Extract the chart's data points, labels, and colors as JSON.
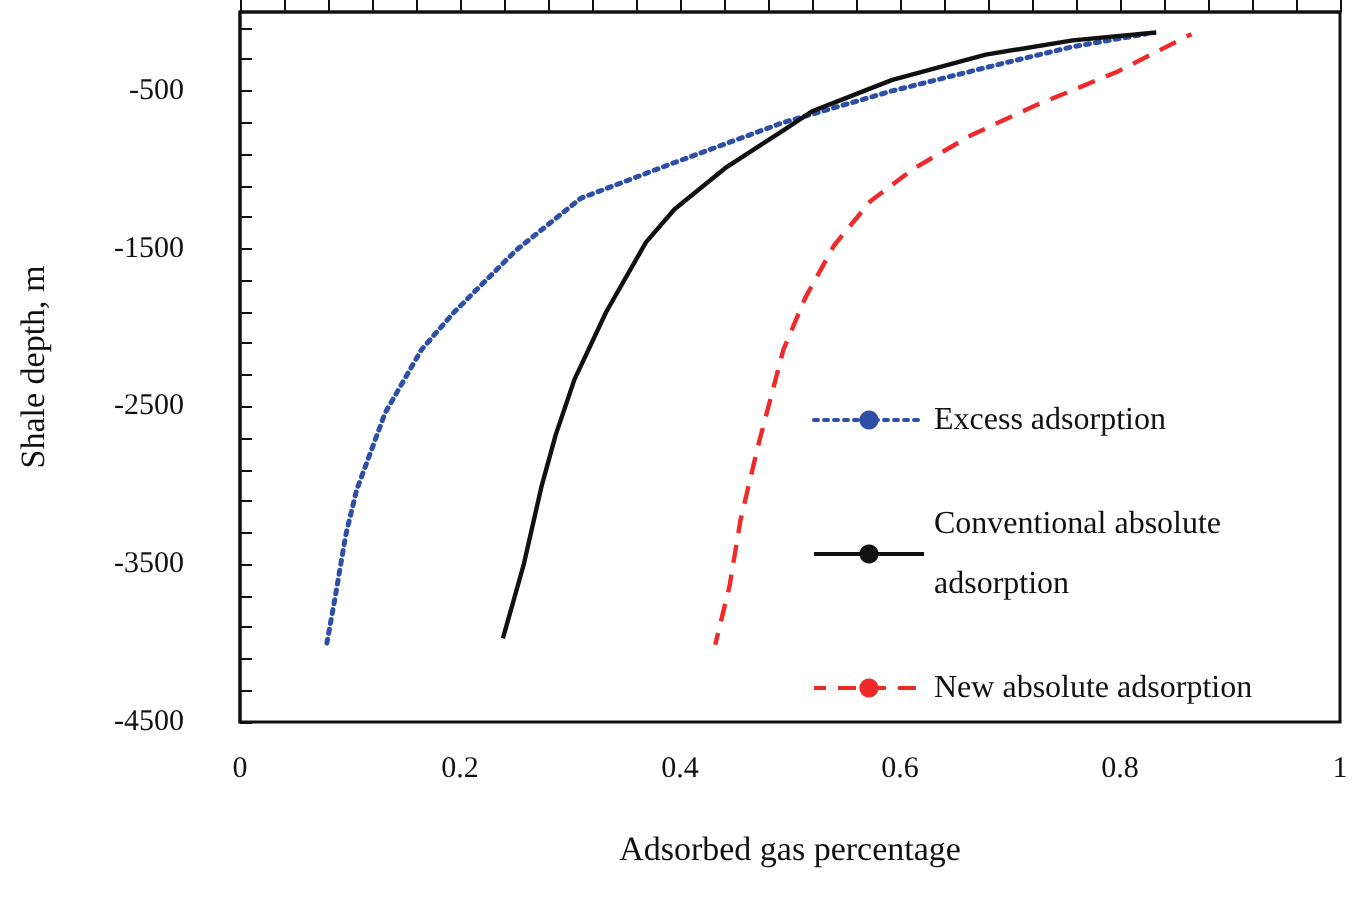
{
  "chart_data": {
    "type": "line",
    "xlabel": "Adsorbed gas percentage",
    "ylabel": "Shale depth, m",
    "xlim": [
      0,
      1
    ],
    "xticks": [
      0,
      {
        "value": 0.04,
        "label": null
      },
      {
        "value": 0.08,
        "label": null
      },
      {
        "value": 0.12,
        "label": null
      },
      {
        "value": 0.16,
        "label": null
      },
      0.2,
      {
        "value": 0.24,
        "label": null
      },
      {
        "value": 0.28,
        "label": null
      },
      {
        "value": 0.32,
        "label": null
      },
      {
        "value": 0.36,
        "label": null
      },
      0.4,
      {
        "value": 0.44,
        "label": null
      },
      {
        "value": 0.48,
        "label": null
      },
      {
        "value": 0.52,
        "label": null
      },
      {
        "value": 0.56,
        "label": null
      },
      0.6,
      {
        "value": 0.64,
        "label": null
      },
      {
        "value": 0.68,
        "label": null
      },
      {
        "value": 0.72,
        "label": null
      },
      {
        "value": 0.76,
        "label": null
      },
      0.8,
      {
        "value": 0.84,
        "label": null
      },
      {
        "value": 0.88,
        "label": null
      },
      {
        "value": 0.92,
        "label": null
      },
      {
        "value": 0.96,
        "label": null
      },
      1
    ],
    "ylim": [
      -4500,
      0
    ],
    "yticks": [
      -4500,
      {
        "value": -4300,
        "label": null
      },
      {
        "value": -4100,
        "label": null
      },
      {
        "value": -3900,
        "label": null
      },
      {
        "value": -3700,
        "label": null
      },
      -3500,
      {
        "value": -3300,
        "label": null
      },
      {
        "value": -3100,
        "label": null
      },
      {
        "value": -2900,
        "label": null
      },
      {
        "value": -2700,
        "label": null
      },
      -2500,
      {
        "value": -2300,
        "label": null
      },
      {
        "value": -2100,
        "label": null
      },
      {
        "value": -1900,
        "label": null
      },
      {
        "value": -1700,
        "label": null
      },
      -1500,
      {
        "value": -1300,
        "label": null
      },
      {
        "value": -1100,
        "label": null
      },
      {
        "value": -900,
        "label": null
      },
      {
        "value": -700,
        "label": null
      },
      -500,
      {
        "value": -300,
        "label": null
      },
      {
        "value": -100,
        "label": null
      }
    ],
    "grid": false,
    "legend": "bottom right",
    "marker": "none",
    "series": [
      {
        "name": "Excess adsorption",
        "color": "#2e4fa8",
        "line_style": "dotted",
        "x": [
          0.079,
          0.087,
          0.096,
          0.106,
          0.132,
          0.165,
          0.195,
          0.251,
          0.31,
          0.389,
          0.494,
          0.593,
          0.691,
          0.757,
          0.823
        ],
        "values": [
          -4000,
          -3690,
          -3320,
          -3030,
          -2540,
          -2140,
          -1900,
          -1510,
          -1180,
          -970,
          -700,
          -500,
          -330,
          -220,
          -140
        ]
      },
      {
        "name": "Conventional absolute adsorption",
        "color": "#111111",
        "line_style": "solid",
        "x": [
          0.239,
          0.258,
          0.274,
          0.287,
          0.304,
          0.333,
          0.369,
          0.395,
          0.441,
          0.494,
          0.52,
          0.593,
          0.678,
          0.757,
          0.833
        ],
        "values": [
          -3970,
          -3500,
          -3010,
          -2680,
          -2330,
          -1900,
          -1460,
          -1250,
          -990,
          -750,
          -630,
          -430,
          -270,
          -180,
          -130
        ]
      },
      {
        "name": "New absolute adsorption",
        "color": "#ee2a2a",
        "line_style": "dashed",
        "x": [
          0.432,
          0.445,
          0.455,
          0.471,
          0.494,
          0.514,
          0.54,
          0.573,
          0.613,
          0.665,
          0.724,
          0.797,
          0.865
        ],
        "values": [
          -4010,
          -3640,
          -3220,
          -2750,
          -2140,
          -1810,
          -1480,
          -1200,
          -990,
          -780,
          -590,
          -380,
          -140
        ]
      }
    ]
  }
}
